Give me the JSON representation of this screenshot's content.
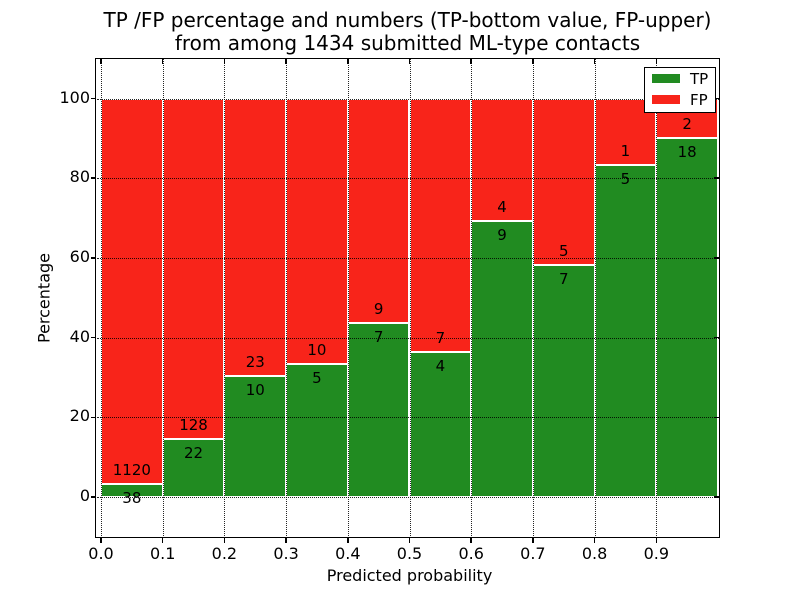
{
  "chart_data": {
    "type": "bar",
    "stacked": true,
    "normalized": "each bin to 100 percent",
    "title_line1": "TP /FP percentage and numbers (TP-bottom value, FP-upper)",
    "title_line2": "from among 1434 submitted ML-type contacts",
    "xlabel": "Predicted probability",
    "ylabel": "Percentage",
    "xlim": [
      0.0,
      1.0
    ],
    "ylim": [
      -10,
      110
    ],
    "grid": "dotted-black",
    "x_ticks": [
      {
        "value": 0.0,
        "label": "0.0"
      },
      {
        "value": 0.1,
        "label": "0.1"
      },
      {
        "value": 0.2,
        "label": "0.2"
      },
      {
        "value": 0.3,
        "label": "0.3"
      },
      {
        "value": 0.4,
        "label": "0.4"
      },
      {
        "value": 0.5,
        "label": "0.5"
      },
      {
        "value": 0.6,
        "label": "0.6"
      },
      {
        "value": 0.7,
        "label": "0.7"
      },
      {
        "value": 0.8,
        "label": "0.8"
      },
      {
        "value": 0.9,
        "label": "0.9"
      }
    ],
    "y_ticks": [
      {
        "value": 0,
        "label": "0"
      },
      {
        "value": 20,
        "label": "20"
      },
      {
        "value": 40,
        "label": "40"
      },
      {
        "value": 60,
        "label": "60"
      },
      {
        "value": 80,
        "label": "80"
      },
      {
        "value": 100,
        "label": "100"
      }
    ],
    "legend": {
      "position": "upper-right",
      "entries": [
        {
          "label": "TP",
          "color": "#218b21"
        },
        {
          "label": "FP",
          "color": "#f8241a"
        }
      ]
    },
    "bins": [
      {
        "x_range": [
          0.0,
          0.1
        ],
        "tp": 38,
        "fp": 1120,
        "tp_pct": 3.28
      },
      {
        "x_range": [
          0.1,
          0.2
        ],
        "tp": 22,
        "fp": 128,
        "tp_pct": 14.67
      },
      {
        "x_range": [
          0.2,
          0.3
        ],
        "tp": 10,
        "fp": 23,
        "tp_pct": 30.3
      },
      {
        "x_range": [
          0.3,
          0.4
        ],
        "tp": 5,
        "fp": 10,
        "tp_pct": 33.33
      },
      {
        "x_range": [
          0.4,
          0.5
        ],
        "tp": 7,
        "fp": 9,
        "tp_pct": 43.75
      },
      {
        "x_range": [
          0.5,
          0.6
        ],
        "tp": 4,
        "fp": 7,
        "tp_pct": 36.36
      },
      {
        "x_range": [
          0.6,
          0.7
        ],
        "tp": 9,
        "fp": 4,
        "tp_pct": 69.23
      },
      {
        "x_range": [
          0.7,
          0.8
        ],
        "tp": 7,
        "fp": 5,
        "tp_pct": 58.33
      },
      {
        "x_range": [
          0.8,
          0.9
        ],
        "tp": 5,
        "fp": 1,
        "tp_pct": 83.33
      },
      {
        "x_range": [
          0.9,
          1.0
        ],
        "tp": 18,
        "fp": 2,
        "tp_pct": 90.0
      }
    ]
  },
  "colors": {
    "tp_green": "#218b21",
    "fp_red": "#f8241a",
    "grid": "#000000",
    "background": "#ffffff",
    "text": "#000000"
  }
}
